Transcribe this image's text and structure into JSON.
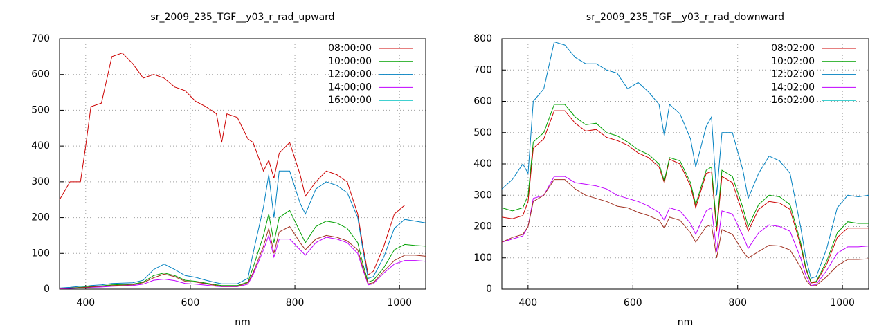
{
  "chart_data": [
    {
      "type": "line",
      "title": "sr_2009_235_TGF__y03_r_rad_upward",
      "xlabel": "nm",
      "xlim": [
        350,
        1050
      ],
      "xticks": [
        400,
        600,
        800,
        1000
      ],
      "ylim": [
        0,
        700
      ],
      "yticks": [
        0,
        100,
        200,
        300,
        400,
        500,
        600,
        700
      ],
      "grid": true,
      "legend": "top-right",
      "x": [
        350,
        370,
        390,
        400,
        410,
        430,
        450,
        470,
        490,
        510,
        530,
        550,
        570,
        590,
        610,
        630,
        650,
        660,
        670,
        690,
        710,
        720,
        740,
        750,
        760,
        770,
        790,
        810,
        820,
        840,
        860,
        880,
        900,
        920,
        930,
        940,
        950,
        970,
        990,
        1010,
        1030,
        1050
      ],
      "series": [
        {
          "name": "08:00:00",
          "color": "#cc0000",
          "values": [
            250,
            300,
            300,
            400,
            510,
            520,
            650,
            660,
            630,
            590,
            600,
            590,
            565,
            555,
            525,
            510,
            490,
            410,
            490,
            480,
            420,
            410,
            330,
            360,
            310,
            380,
            410,
            320,
            260,
            300,
            330,
            320,
            300,
            210,
            120,
            40,
            50,
            120,
            210,
            235,
            235,
            235
          ]
        },
        {
          "name": "10:00:00",
          "color": "#00a000",
          "values": [
            2,
            3,
            5,
            6,
            7,
            9,
            12,
            13,
            14,
            20,
            38,
            45,
            38,
            25,
            22,
            17,
            12,
            10,
            10,
            10,
            20,
            60,
            150,
            210,
            130,
            200,
            220,
            160,
            130,
            175,
            190,
            185,
            170,
            130,
            70,
            20,
            25,
            60,
            110,
            125,
            122,
            120
          ]
        },
        {
          "name": "12:00:00",
          "color": "#0080c0",
          "values": [
            3,
            5,
            8,
            8,
            10,
            12,
            16,
            17,
            18,
            25,
            55,
            70,
            55,
            38,
            33,
            25,
            18,
            15,
            15,
            15,
            30,
            100,
            230,
            320,
            200,
            330,
            330,
            240,
            210,
            280,
            300,
            290,
            270,
            200,
            110,
            30,
            35,
            90,
            170,
            195,
            190,
            185
          ]
        },
        {
          "name": "14:00:00",
          "color": "#c000ff",
          "values": [
            1,
            2,
            3,
            4,
            5,
            6,
            8,
            9,
            10,
            14,
            25,
            28,
            24,
            16,
            14,
            11,
            8,
            7,
            7,
            7,
            14,
            40,
            110,
            150,
            90,
            140,
            140,
            110,
            95,
            130,
            145,
            140,
            130,
            100,
            55,
            12,
            15,
            45,
            70,
            80,
            80,
            78
          ]
        },
        {
          "name": "16:00:00",
          "color": "#00c0c0",
          "values": [
            null,
            null,
            null,
            null,
            null,
            null,
            null,
            null,
            null,
            null,
            null,
            null,
            null,
            null,
            null,
            null,
            null,
            null,
            null,
            null,
            null,
            null,
            null,
            null,
            null,
            null,
            null,
            null,
            null,
            null,
            null,
            null,
            null,
            null,
            null,
            null,
            null,
            null,
            null,
            null,
            null,
            null
          ]
        },
        {
          "color": "#a03020",
          "values": [
            2,
            3,
            4,
            5,
            6,
            8,
            10,
            11,
            12,
            18,
            32,
            42,
            35,
            22,
            20,
            15,
            10,
            8,
            8,
            8,
            18,
            45,
            120,
            170,
            100,
            160,
            175,
            130,
            110,
            140,
            150,
            145,
            135,
            110,
            60,
            15,
            18,
            50,
            80,
            95,
            95,
            92
          ]
        }
      ]
    },
    {
      "type": "line",
      "title": "sr_2009_235_TGF__y03_r_rad_downward",
      "xlabel": "nm",
      "xlim": [
        350,
        1050
      ],
      "xticks": [
        400,
        600,
        800,
        1000
      ],
      "ylim": [
        0,
        800
      ],
      "yticks": [
        0,
        100,
        200,
        300,
        400,
        500,
        600,
        700,
        800
      ],
      "grid": true,
      "legend": "top-right",
      "x": [
        350,
        370,
        390,
        400,
        410,
        430,
        450,
        470,
        490,
        510,
        530,
        550,
        570,
        590,
        610,
        630,
        650,
        660,
        670,
        690,
        710,
        720,
        740,
        750,
        760,
        770,
        790,
        810,
        820,
        840,
        860,
        880,
        900,
        920,
        930,
        940,
        950,
        970,
        990,
        1010,
        1030,
        1050
      ],
      "series": [
        {
          "name": "08:02:00",
          "color": "#cc0000",
          "values": [
            230,
            225,
            235,
            280,
            450,
            480,
            570,
            570,
            530,
            505,
            510,
            485,
            475,
            460,
            435,
            420,
            390,
            340,
            415,
            400,
            330,
            260,
            370,
            375,
            185,
            360,
            340,
            240,
            185,
            255,
            280,
            275,
            255,
            140,
            65,
            20,
            22,
            80,
            165,
            195,
            195,
            195
          ]
        },
        {
          "name": "10:02:00",
          "color": "#00a000",
          "values": [
            260,
            250,
            260,
            300,
            470,
            500,
            590,
            590,
            550,
            525,
            530,
            500,
            490,
            470,
            445,
            430,
            400,
            345,
            420,
            410,
            340,
            270,
            380,
            390,
            200,
            380,
            360,
            260,
            200,
            270,
            300,
            295,
            270,
            150,
            70,
            22,
            25,
            90,
            180,
            215,
            210,
            210
          ]
        },
        {
          "name": "12:02:00",
          "color": "#0080c0",
          "values": [
            320,
            350,
            400,
            370,
            600,
            640,
            790,
            780,
            740,
            720,
            720,
            700,
            690,
            640,
            660,
            630,
            590,
            490,
            590,
            560,
            480,
            390,
            520,
            550,
            300,
            500,
            500,
            380,
            290,
            370,
            425,
            410,
            370,
            200,
            100,
            35,
            40,
            130,
            260,
            300,
            295,
            300
          ]
        },
        {
          "name": "14:02:00",
          "color": "#c000ff",
          "values": [
            150,
            160,
            170,
            200,
            290,
            300,
            360,
            360,
            340,
            335,
            330,
            320,
            300,
            290,
            280,
            265,
            245,
            220,
            260,
            250,
            210,
            175,
            250,
            260,
            120,
            250,
            240,
            170,
            130,
            180,
            205,
            200,
            185,
            100,
            45,
            12,
            15,
            60,
            115,
            135,
            135,
            138
          ]
        },
        {
          "name": "16:02:00",
          "color": "#00c0c0",
          "values": [
            null,
            null,
            null,
            null,
            null,
            null,
            null,
            null,
            null,
            null,
            null,
            null,
            null,
            null,
            null,
            null,
            null,
            null,
            null,
            null,
            null,
            null,
            null,
            null,
            null,
            null,
            null,
            null,
            null,
            null,
            null,
            null,
            null,
            null,
            null,
            null,
            null,
            null,
            null,
            null,
            null,
            null
          ]
        },
        {
          "color": "#a03020",
          "values": [
            150,
            165,
            175,
            200,
            280,
            300,
            350,
            350,
            320,
            300,
            290,
            280,
            265,
            260,
            245,
            235,
            220,
            195,
            230,
            220,
            180,
            150,
            200,
            205,
            100,
            190,
            175,
            120,
            100,
            120,
            140,
            138,
            125,
            70,
            30,
            10,
            12,
            40,
            75,
            95,
            95,
            97
          ]
        }
      ]
    }
  ]
}
